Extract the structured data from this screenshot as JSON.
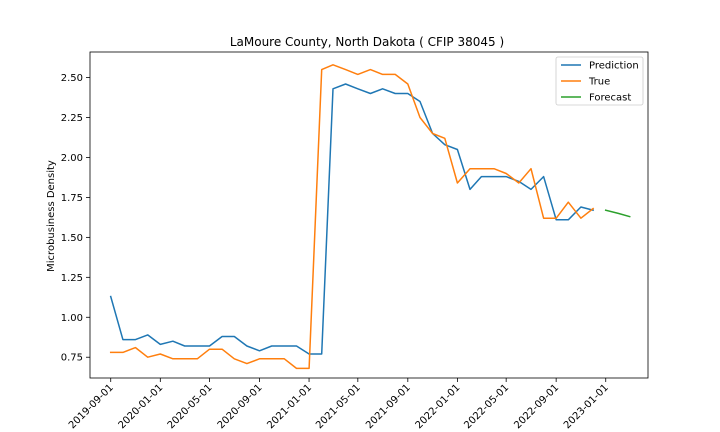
{
  "chart_data": {
    "type": "line",
    "title": "LaMoure County, North Dakota ( CFIP 38045 )",
    "xlabel": "",
    "ylabel": "Microbusiness Density",
    "ylim": [
      0.62,
      2.66
    ],
    "xlim": [
      "2019-07-12",
      "2023-04-15"
    ],
    "grid": false,
    "legend_position": "top-right",
    "yticks": [
      0.75,
      1.0,
      1.25,
      1.5,
      1.75,
      2.0,
      2.25,
      2.5
    ],
    "ytick_labels": [
      "0.75",
      "1.00",
      "1.25",
      "1.50",
      "1.75",
      "2.00",
      "2.25",
      "2.50"
    ],
    "xticks": [
      "2019-09-01",
      "2020-01-01",
      "2020-05-01",
      "2020-09-01",
      "2021-01-01",
      "2021-05-01",
      "2021-09-01",
      "2022-01-01",
      "2022-05-01",
      "2022-09-01",
      "2023-01-01"
    ],
    "xtick_labels": [
      "2019-09-01",
      "2020-01-01",
      "2020-05-01",
      "2020-09-01",
      "2021-01-01",
      "2021-05-01",
      "2021-09-01",
      "2022-01-01",
      "2022-05-01",
      "2022-09-01",
      "2023-01-01"
    ],
    "series": [
      {
        "name": "Prediction",
        "color": "#1f77b4",
        "x": [
          "2019-09-01",
          "2019-10-01",
          "2019-11-01",
          "2019-12-01",
          "2020-01-01",
          "2020-02-01",
          "2020-03-01",
          "2020-04-01",
          "2020-05-01",
          "2020-06-01",
          "2020-07-01",
          "2020-08-01",
          "2020-09-01",
          "2020-10-01",
          "2020-11-01",
          "2020-12-01",
          "2021-01-01",
          "2021-02-01",
          "2021-03-01",
          "2021-04-01",
          "2021-05-01",
          "2021-06-01",
          "2021-07-01",
          "2021-08-01",
          "2021-09-01",
          "2021-10-01",
          "2021-11-01",
          "2021-12-01",
          "2022-01-01",
          "2022-02-01",
          "2022-03-01",
          "2022-04-01",
          "2022-05-01",
          "2022-06-01",
          "2022-07-01",
          "2022-08-01",
          "2022-09-01",
          "2022-10-01",
          "2022-11-01",
          "2022-12-01"
        ],
        "values": [
          1.13,
          0.86,
          0.86,
          0.89,
          0.83,
          0.85,
          0.82,
          0.82,
          0.82,
          0.88,
          0.88,
          0.82,
          0.79,
          0.82,
          0.82,
          0.82,
          0.77,
          0.77,
          2.43,
          2.46,
          2.43,
          2.4,
          2.43,
          2.4,
          2.4,
          2.35,
          2.15,
          2.08,
          2.05,
          1.8,
          1.88,
          1.88,
          1.88,
          1.85,
          1.8,
          1.88,
          1.61,
          1.61,
          1.69,
          1.67
        ]
      },
      {
        "name": "True",
        "color": "#ff7f0e",
        "x": [
          "2019-09-01",
          "2019-10-01",
          "2019-11-01",
          "2019-12-01",
          "2020-01-01",
          "2020-02-01",
          "2020-03-01",
          "2020-04-01",
          "2020-05-01",
          "2020-06-01",
          "2020-07-01",
          "2020-08-01",
          "2020-09-01",
          "2020-10-01",
          "2020-11-01",
          "2020-12-01",
          "2021-01-01",
          "2021-02-01",
          "2021-03-01",
          "2021-04-01",
          "2021-05-01",
          "2021-06-01",
          "2021-07-01",
          "2021-08-01",
          "2021-09-01",
          "2021-10-01",
          "2021-11-01",
          "2021-12-01",
          "2022-01-01",
          "2022-02-01",
          "2022-03-01",
          "2022-04-01",
          "2022-05-01",
          "2022-06-01",
          "2022-07-01",
          "2022-08-01",
          "2022-09-01",
          "2022-10-01",
          "2022-11-01",
          "2022-12-01"
        ],
        "values": [
          0.78,
          0.78,
          0.81,
          0.75,
          0.77,
          0.74,
          0.74,
          0.74,
          0.8,
          0.8,
          0.74,
          0.71,
          0.74,
          0.74,
          0.74,
          0.68,
          0.68,
          2.55,
          2.58,
          2.55,
          2.52,
          2.55,
          2.52,
          2.52,
          2.46,
          2.25,
          2.15,
          2.12,
          1.84,
          1.93,
          1.93,
          1.93,
          1.9,
          1.84,
          1.93,
          1.62,
          1.62,
          1.72,
          1.62,
          1.68
        ]
      },
      {
        "name": "Forecast",
        "color": "#2ca02c",
        "x": [
          "2023-01-01",
          "2023-02-01",
          "2023-03-01"
        ],
        "values": [
          1.67,
          1.65,
          1.63
        ]
      }
    ]
  }
}
